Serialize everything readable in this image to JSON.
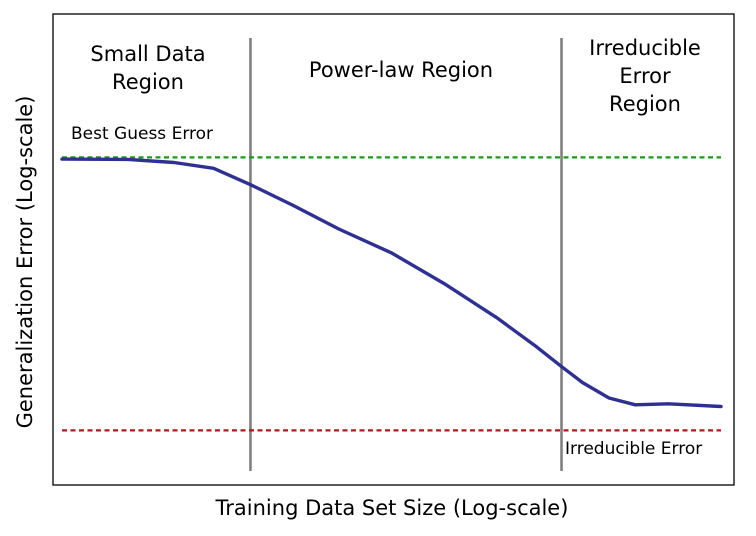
{
  "chart_data": {
    "type": "line",
    "title": "",
    "xlabel": "Training Data Set Size (Log-scale)",
    "ylabel": "Generalization Error (Log-scale)",
    "x_scale": "log",
    "y_scale": "log",
    "ticks_shown": false,
    "grid": false,
    "regions": [
      {
        "label_lines": [
          "Small Data",
          "Region"
        ]
      },
      {
        "label_lines": [
          "Power-law Region"
        ]
      },
      {
        "label_lines": [
          "Irreducible",
          "Error",
          "Region"
        ]
      }
    ],
    "region_boundaries_x": [
      0.286,
      0.758
    ],
    "reference_lines": [
      {
        "label": "Best Guess Error",
        "y": 0.88,
        "color": "#1a9a1a",
        "style": "dashed"
      },
      {
        "label": "Irreducible Error",
        "y": 0.08,
        "color": "#b01818",
        "style": "dashed"
      },
      {
        "label": "",
        "color": "#808080",
        "style": "solid"
      }
    ],
    "series": [
      {
        "color": "#2e3192",
        "x": [
          0.0,
          0.1,
          0.17,
          0.23,
          0.286,
          0.35,
          0.42,
          0.5,
          0.58,
          0.66,
          0.72,
          0.758,
          0.79,
          0.83,
          0.87,
          0.92,
          1.0
        ],
        "y": [
          0.875,
          0.874,
          0.865,
          0.848,
          0.8,
          0.74,
          0.67,
          0.6,
          0.51,
          0.41,
          0.325,
          0.267,
          0.22,
          0.175,
          0.155,
          0.158,
          0.15
        ]
      }
    ],
    "xlim": [
      0,
      1
    ],
    "ylim": [
      -0.08,
      1.3
    ]
  }
}
